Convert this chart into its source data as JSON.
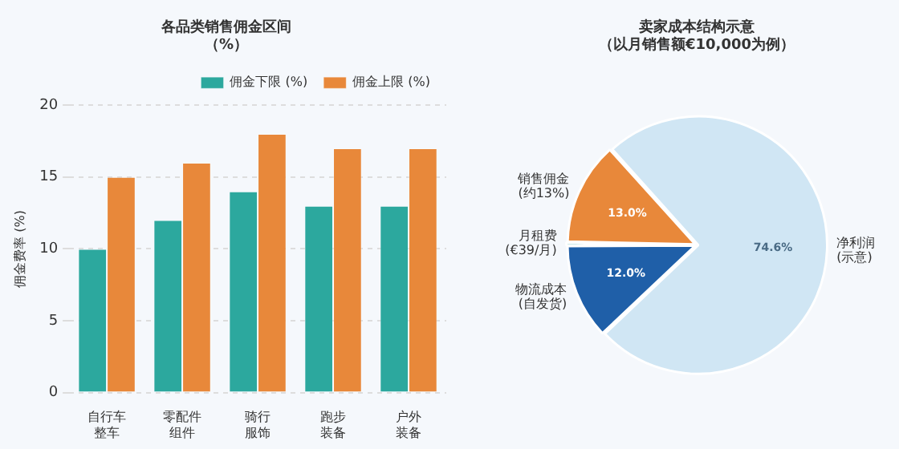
{
  "chart_data": [
    {
      "type": "bar",
      "title": "各品类销售佣金区间（%）",
      "ylabel": "佣金费率 (%)",
      "categories": [
        "自行车整车",
        "零配件组件",
        "骑行服饰",
        "跑步装备",
        "户外装备"
      ],
      "series": [
        {
          "name": "佣金下限 (%)",
          "color": "#2ca89e",
          "values": [
            10,
            12,
            14,
            13,
            13
          ]
        },
        {
          "name": "佣金上限 (%)",
          "color": "#e8883a",
          "values": [
            15,
            16,
            18,
            17,
            17
          ]
        }
      ],
      "ylim": [
        0,
        20
      ],
      "yticks": [
        0,
        5,
        10,
        15,
        20
      ],
      "grid": "y",
      "legend": "top right"
    },
    {
      "type": "pie",
      "title": "卖家成本结构示意（以月销售额€10,000为例）",
      "categories": [
        "净利润(示意)",
        "物流成本(自发货)",
        "月租费(€39/月)",
        "销售佣金(约13%)"
      ],
      "values": [
        74.6,
        12.0,
        0.4,
        13.0
      ],
      "colors": [
        "#d0e6f4",
        "#1f5fa8",
        "#2ca89e",
        "#e8883a"
      ],
      "value_labels": [
        "74.6%",
        "12.0%",
        null,
        "13.0%"
      ]
    }
  ]
}
